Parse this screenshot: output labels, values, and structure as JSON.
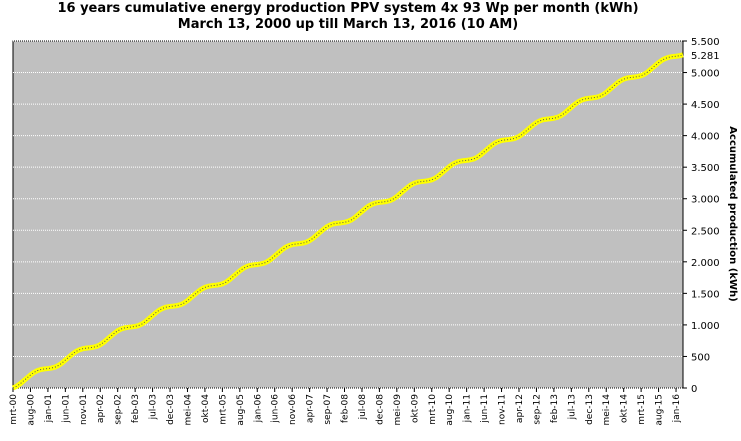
{
  "chart_data": {
    "type": "line",
    "title": "16 years cumulative energy production PPV system 4x 93 Wp per month (kWh)",
    "subtitle": "March 13, 2000 up till March 13, 2016 (10 AM)",
    "y_axis_label": "Accumulated production (kWh)",
    "last_value_label": "5.281",
    "last_value_color": "#ff0000",
    "grid": true,
    "background": "#c0c0c0",
    "categories": [
      "mrt-00",
      null,
      null,
      null,
      null,
      "aug-00",
      null,
      null,
      null,
      null,
      "jan-01",
      null,
      null,
      null,
      null,
      "jun-01",
      null,
      null,
      null,
      null,
      "nov-01",
      null,
      null,
      null,
      null,
      "apr-02",
      null,
      null,
      null,
      null,
      "sep-02",
      null,
      null,
      null,
      null,
      "feb-03",
      null,
      null,
      null,
      null,
      "jul-03",
      null,
      null,
      null,
      null,
      "dec-03",
      null,
      null,
      null,
      null,
      "mei-04",
      null,
      null,
      null,
      null,
      "okt-04",
      null,
      null,
      null,
      null,
      "mrt-05",
      null,
      null,
      null,
      null,
      "aug-05",
      null,
      null,
      null,
      null,
      "jan-06",
      null,
      null,
      null,
      null,
      "jun-06",
      null,
      null,
      null,
      null,
      "nov-06",
      null,
      null,
      null,
      null,
      "apr-07",
      null,
      null,
      null,
      null,
      "sep-07",
      null,
      null,
      null,
      null,
      "feb-08",
      null,
      null,
      null,
      null,
      "jul-08",
      null,
      null,
      null,
      null,
      "dec-08",
      null,
      null,
      null,
      null,
      "mei-09",
      null,
      null,
      null,
      null,
      "okt-09",
      null,
      null,
      null,
      null,
      "mrt-10",
      null,
      null,
      null,
      null,
      "aug-10",
      null,
      null,
      null,
      null,
      "jan-11",
      null,
      null,
      null,
      null,
      "jun-11",
      null,
      null,
      null,
      null,
      "nov-11",
      null,
      null,
      null,
      null,
      "apr-12",
      null,
      null,
      null,
      null,
      "sep-12",
      null,
      null,
      null,
      null,
      "feb-13",
      null,
      null,
      null,
      null,
      "jul-13",
      null,
      null,
      null,
      null,
      "dec-13",
      null,
      null,
      null,
      null,
      "mei-14",
      null,
      null,
      null,
      null,
      "okt-14",
      null,
      null,
      null,
      null,
      "mrt-15",
      null,
      null,
      null,
      null,
      "aug-15",
      null,
      null,
      null,
      null,
      "jan-16",
      null,
      null
    ],
    "series": [
      {
        "name": "Accumulated production",
        "color": "#ffff00",
        "values": [
          0,
          26,
          64,
          112,
          159,
          206,
          247,
          275,
          293,
          302,
          308,
          316,
          330,
          356,
          394,
          442,
          489,
          536,
          577,
          605,
          623,
          632,
          638,
          646,
          660,
          686,
          724,
          772,
          819,
          866,
          907,
          935,
          953,
          962,
          968,
          976,
          990,
          1016,
          1054,
          1102,
          1149,
          1196,
          1237,
          1265,
          1283,
          1292,
          1298,
          1306,
          1320,
          1346,
          1384,
          1432,
          1479,
          1526,
          1567,
          1595,
          1613,
          1622,
          1628,
          1636,
          1650,
          1676,
          1714,
          1762,
          1809,
          1856,
          1897,
          1925,
          1943,
          1952,
          1958,
          1966,
          1980,
          2006,
          2044,
          2092,
          2139,
          2186,
          2227,
          2255,
          2273,
          2282,
          2288,
          2296,
          2310,
          2336,
          2374,
          2422,
          2469,
          2516,
          2557,
          2585,
          2603,
          2612,
          2618,
          2626,
          2640,
          2666,
          2704,
          2752,
          2799,
          2846,
          2887,
          2915,
          2933,
          2942,
          2948,
          2956,
          2970,
          2996,
          3034,
          3082,
          3129,
          3176,
          3217,
          3245,
          3263,
          3272,
          3278,
          3286,
          3300,
          3326,
          3364,
          3412,
          3459,
          3506,
          3547,
          3575,
          3593,
          3602,
          3608,
          3616,
          3630,
          3656,
          3694,
          3742,
          3789,
          3836,
          3877,
          3905,
          3923,
          3932,
          3938,
          3946,
          3960,
          3986,
          4024,
          4072,
          4119,
          4166,
          4207,
          4235,
          4253,
          4262,
          4268,
          4276,
          4290,
          4316,
          4354,
          4402,
          4449,
          4496,
          4537,
          4565,
          4583,
          4592,
          4598,
          4606,
          4620,
          4646,
          4684,
          4732,
          4779,
          4826,
          4867,
          4895,
          4913,
          4922,
          4928,
          4936,
          4950,
          4976,
          5014,
          5062,
          5109,
          5156,
          5197,
          5225,
          5243,
          5252,
          5258,
          5266,
          5281
        ]
      }
    ],
    "ylim": [
      0,
      5500
    ],
    "yticks": [
      0,
      500,
      {
        "value": 1000,
        "label": "1.000"
      },
      {
        "value": 1500,
        "label": "1.500"
      },
      {
        "value": 2000,
        "label": "2.000"
      },
      {
        "value": 2500,
        "label": "2.500"
      },
      {
        "value": 3000,
        "label": "3.000"
      },
      {
        "value": 3500,
        "label": "3.500"
      },
      {
        "value": 4000,
        "label": "4.000"
      },
      {
        "value": 4500,
        "label": "4.500"
      },
      {
        "value": 5000,
        "label": "5.000"
      },
      {
        "value": 5500,
        "label": "5.500"
      }
    ]
  }
}
